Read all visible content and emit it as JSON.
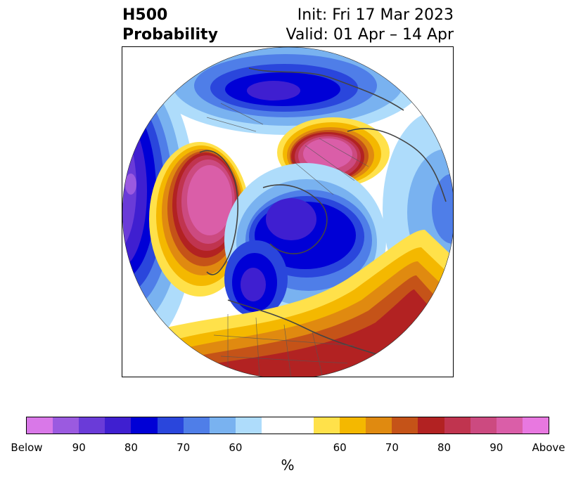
{
  "title": {
    "left_line1": "H500",
    "left_line2": "Probability",
    "right_line1": "Init: Fri 17 Mar 2023",
    "right_line2": "Valid: 01 Apr – 14 Apr"
  },
  "colorbar": {
    "unit": "%",
    "segments": [
      {
        "color": "#d978e8"
      },
      {
        "color": "#9b5ae0"
      },
      {
        "color": "#6a3bd8"
      },
      {
        "color": "#3f1fd0"
      },
      {
        "color": "#0000d6"
      },
      {
        "color": "#2a46dc"
      },
      {
        "color": "#4f7ee8"
      },
      {
        "color": "#79b2f0"
      },
      {
        "color": "#aedcfb"
      },
      {
        "color": "#ffffff",
        "wide": true
      },
      {
        "color": "#ffe14a"
      },
      {
        "color": "#f4b800"
      },
      {
        "color": "#e08a10"
      },
      {
        "color": "#c55318"
      },
      {
        "color": "#b22222"
      },
      {
        "color": "#c0344f"
      },
      {
        "color": "#cc4a80"
      },
      {
        "color": "#da5ea8"
      },
      {
        "color": "#e878e0"
      }
    ],
    "tick_labels": [
      "Below",
      "90",
      "80",
      "70",
      "60",
      "60",
      "70",
      "80",
      "90",
      "Above"
    ]
  }
}
